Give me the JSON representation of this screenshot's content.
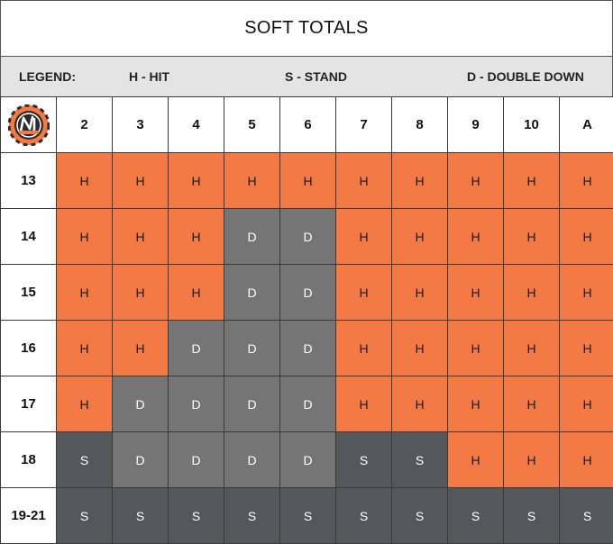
{
  "title": "SOFT TOTALS",
  "legend": {
    "label": "LEGEND:",
    "hit": "H - HIT",
    "stand": "S - STAND",
    "double": "D - DOUBLE DOWN"
  },
  "colors": {
    "H": "#f47a45",
    "D": "#757575",
    "S": "#54575c"
  },
  "logo_icon": "blackjack-chip-logo-icon",
  "dealer_cards": [
    "2",
    "3",
    "4",
    "5",
    "6",
    "7",
    "8",
    "9",
    "10",
    "A"
  ],
  "rows": [
    {
      "label": "13",
      "actions": [
        "H",
        "H",
        "H",
        "H",
        "H",
        "H",
        "H",
        "H",
        "H",
        "H"
      ]
    },
    {
      "label": "14",
      "actions": [
        "H",
        "H",
        "H",
        "D",
        "D",
        "H",
        "H",
        "H",
        "H",
        "H"
      ]
    },
    {
      "label": "15",
      "actions": [
        "H",
        "H",
        "H",
        "D",
        "D",
        "H",
        "H",
        "H",
        "H",
        "H"
      ]
    },
    {
      "label": "16",
      "actions": [
        "H",
        "H",
        "D",
        "D",
        "D",
        "H",
        "H",
        "H",
        "H",
        "H"
      ]
    },
    {
      "label": "17",
      "actions": [
        "H",
        "D",
        "D",
        "D",
        "D",
        "H",
        "H",
        "H",
        "H",
        "H"
      ]
    },
    {
      "label": "18",
      "actions": [
        "S",
        "D",
        "D",
        "D",
        "D",
        "S",
        "S",
        "H",
        "H",
        "H"
      ]
    },
    {
      "label": "19-21",
      "actions": [
        "S",
        "S",
        "S",
        "S",
        "S",
        "S",
        "S",
        "S",
        "S",
        "S"
      ]
    }
  ]
}
